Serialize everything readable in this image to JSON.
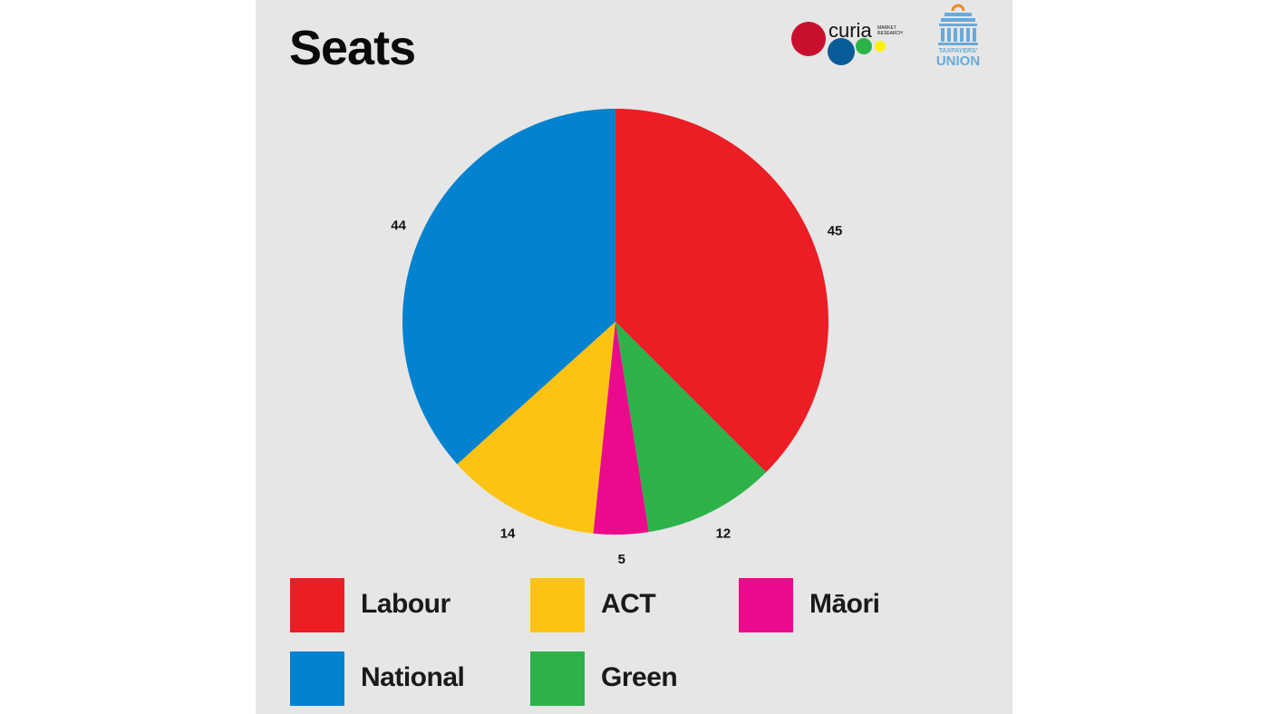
{
  "title": "Seats",
  "logos": {
    "curia": {
      "wordmark": "curia",
      "tagline_line1": "MARKET",
      "tagline_line2": "RESEARCH"
    },
    "taxpayers_union": {
      "line1": "TAXPAYERS'",
      "line2": "UNION"
    }
  },
  "colors": {
    "background": "#e6e6e6",
    "labour": "#ec1d24",
    "national": "#0282cf",
    "act": "#fdc313",
    "maori": "#eb0a8c",
    "green": "#2db24a",
    "tu_blue": "#6aaad9",
    "tu_orange": "#f08a24"
  },
  "chart_data": {
    "type": "pie",
    "title": "Seats",
    "start": "top",
    "direction": "clockwise",
    "slices": [
      {
        "label": "Labour",
        "value": 45,
        "color": "#ec1d24"
      },
      {
        "label": "Green",
        "value": 12,
        "color": "#2db24a"
      },
      {
        "label": "Māori",
        "value": 5,
        "color": "#eb0a8c"
      },
      {
        "label": "ACT",
        "value": 14,
        "color": "#fdc313"
      },
      {
        "label": "National",
        "value": 44,
        "color": "#0282cf"
      }
    ]
  },
  "legend": {
    "items": [
      {
        "label": "Labour",
        "color": "#ec1d24"
      },
      {
        "label": "ACT",
        "color": "#fdc313"
      },
      {
        "label": "Māori",
        "color": "#eb0a8c"
      },
      {
        "label": "National",
        "color": "#0282cf"
      },
      {
        "label": "Green",
        "color": "#2db24a"
      }
    ]
  }
}
